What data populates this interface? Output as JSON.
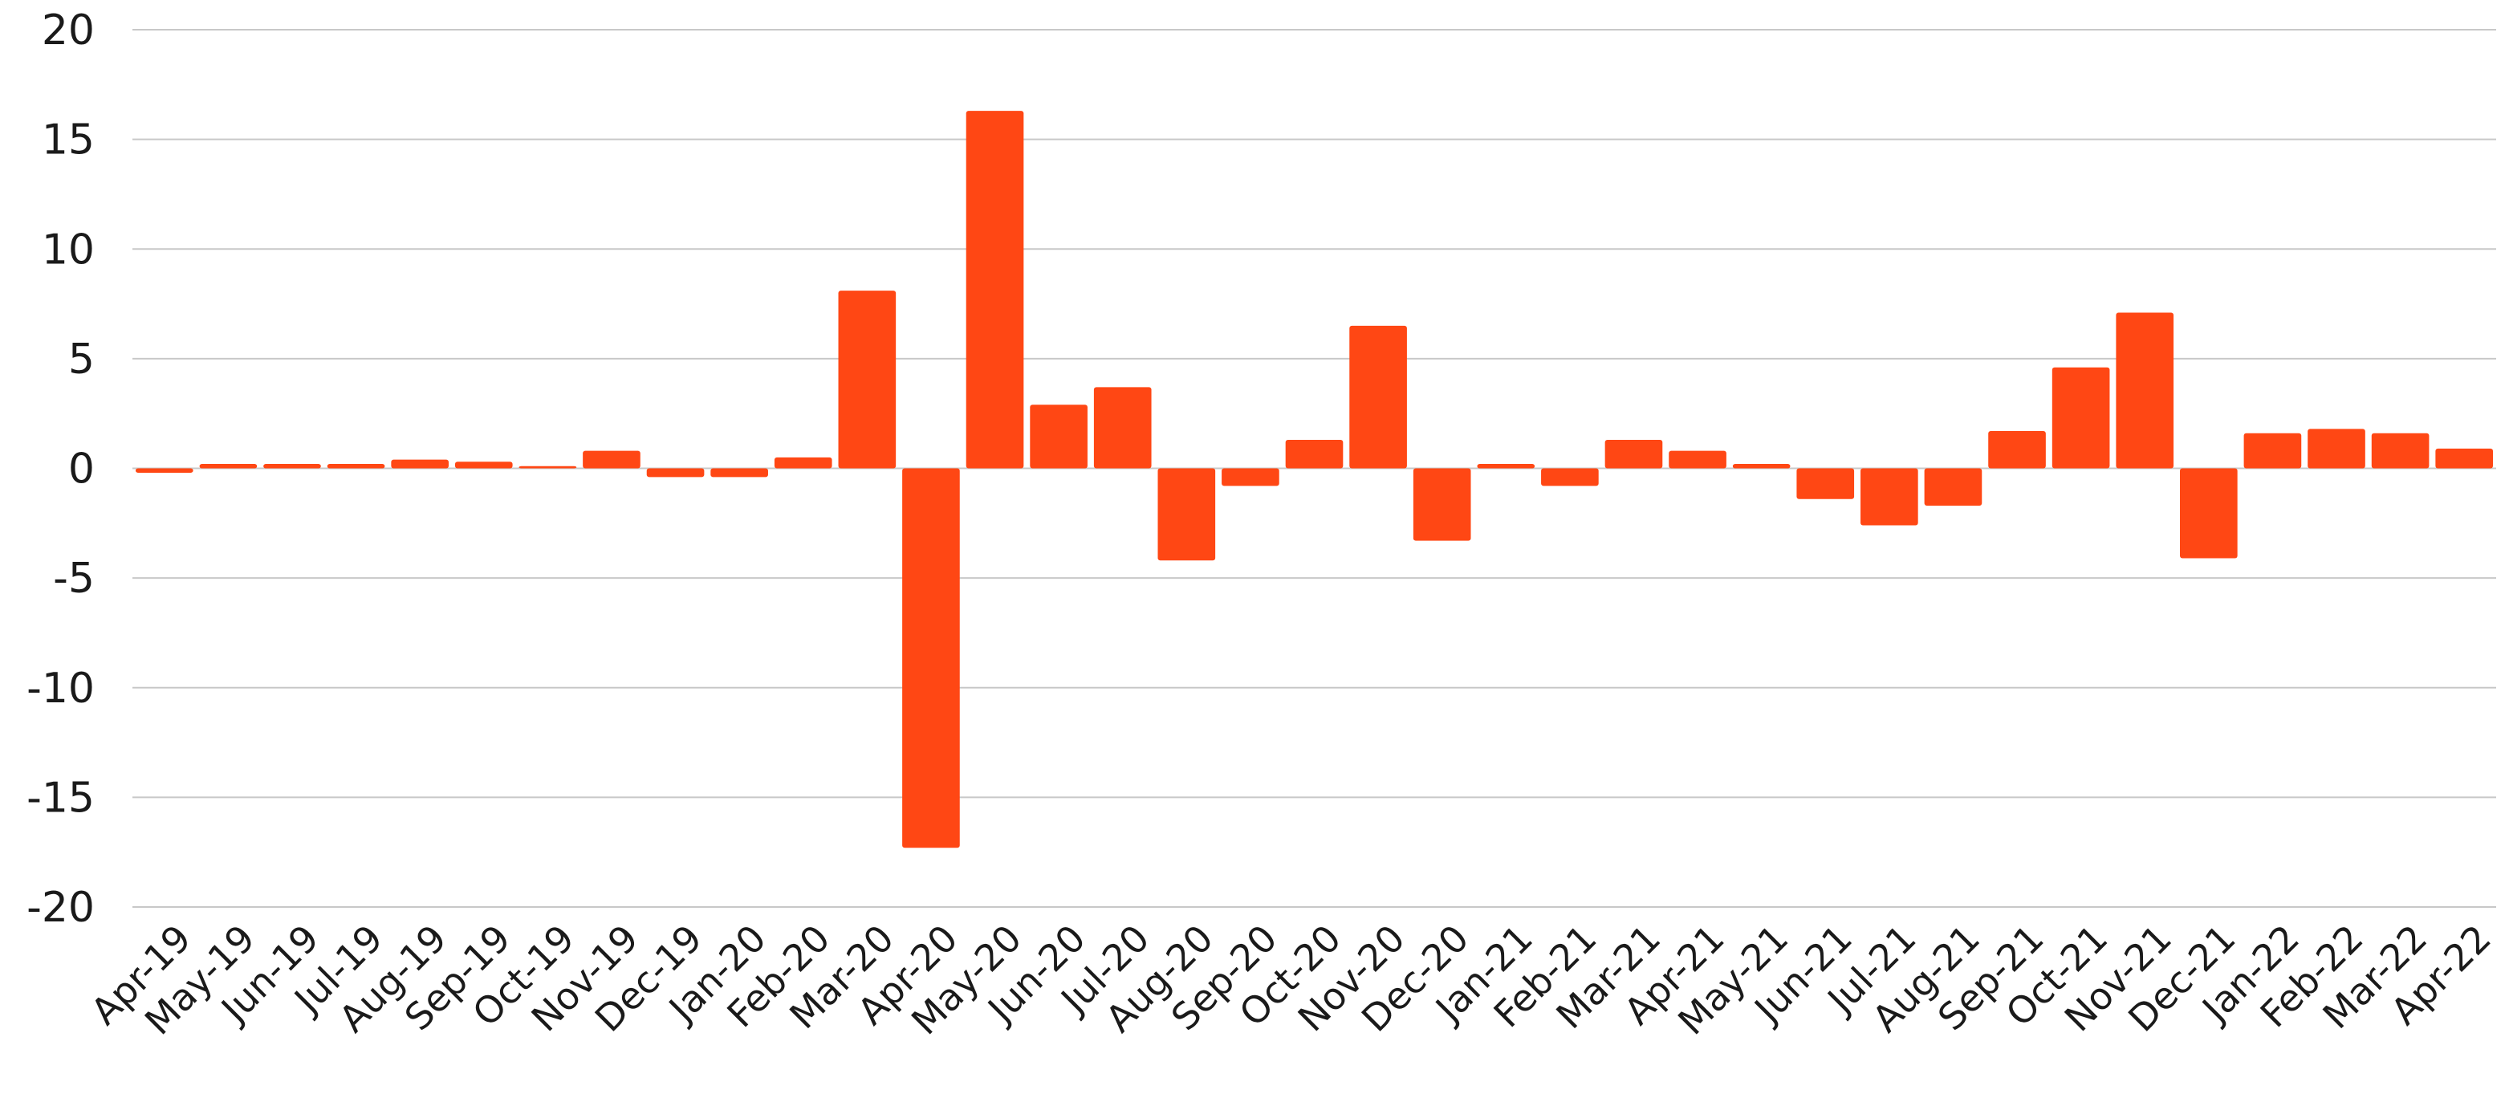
{
  "chart_data": {
    "type": "bar",
    "title": "",
    "xlabel": "",
    "ylabel": "",
    "ylim": [
      -20,
      20
    ],
    "yticks": [
      20,
      15,
      10,
      5,
      0,
      -5,
      -10,
      -15,
      -20
    ],
    "grid": true,
    "legend": "none",
    "bar_color": "#ff4714",
    "categories": [
      "Apr-19",
      "May-19",
      "Jun-19",
      "Jul-19",
      "Aug-19",
      "Sep-19",
      "Oct-19",
      "Nov-19",
      "Dec-19",
      "Jan-20",
      "Feb-20",
      "Mar-20",
      "Apr-20",
      "May-20",
      "Jun-20",
      "Jul-20",
      "Aug-20",
      "Sep-20",
      "Oct-20",
      "Nov-20",
      "Dec-20",
      "Jan-21",
      "Feb-21",
      "Mar-21",
      "Apr-21",
      "May-21",
      "Jun-21",
      "Jul-21",
      "Aug-21",
      "Sep-21",
      "Oct-21",
      "Nov-21",
      "Dec-21",
      "Jan-22",
      "Feb-22",
      "Mar-22",
      "Apr-22"
    ],
    "values": [
      -0.2,
      0.2,
      0.2,
      0.2,
      0.4,
      0.3,
      0.1,
      0.8,
      -0.4,
      -0.4,
      0.5,
      8.1,
      -17.3,
      16.3,
      2.9,
      3.7,
      -4.2,
      -0.8,
      1.3,
      6.5,
      -3.3,
      0.2,
      -0.8,
      1.3,
      0.8,
      0.2,
      -1.4,
      -2.6,
      -1.7,
      1.7,
      4.6,
      7.1,
      -4.1,
      1.6,
      1.8,
      1.6,
      0.9
    ]
  }
}
